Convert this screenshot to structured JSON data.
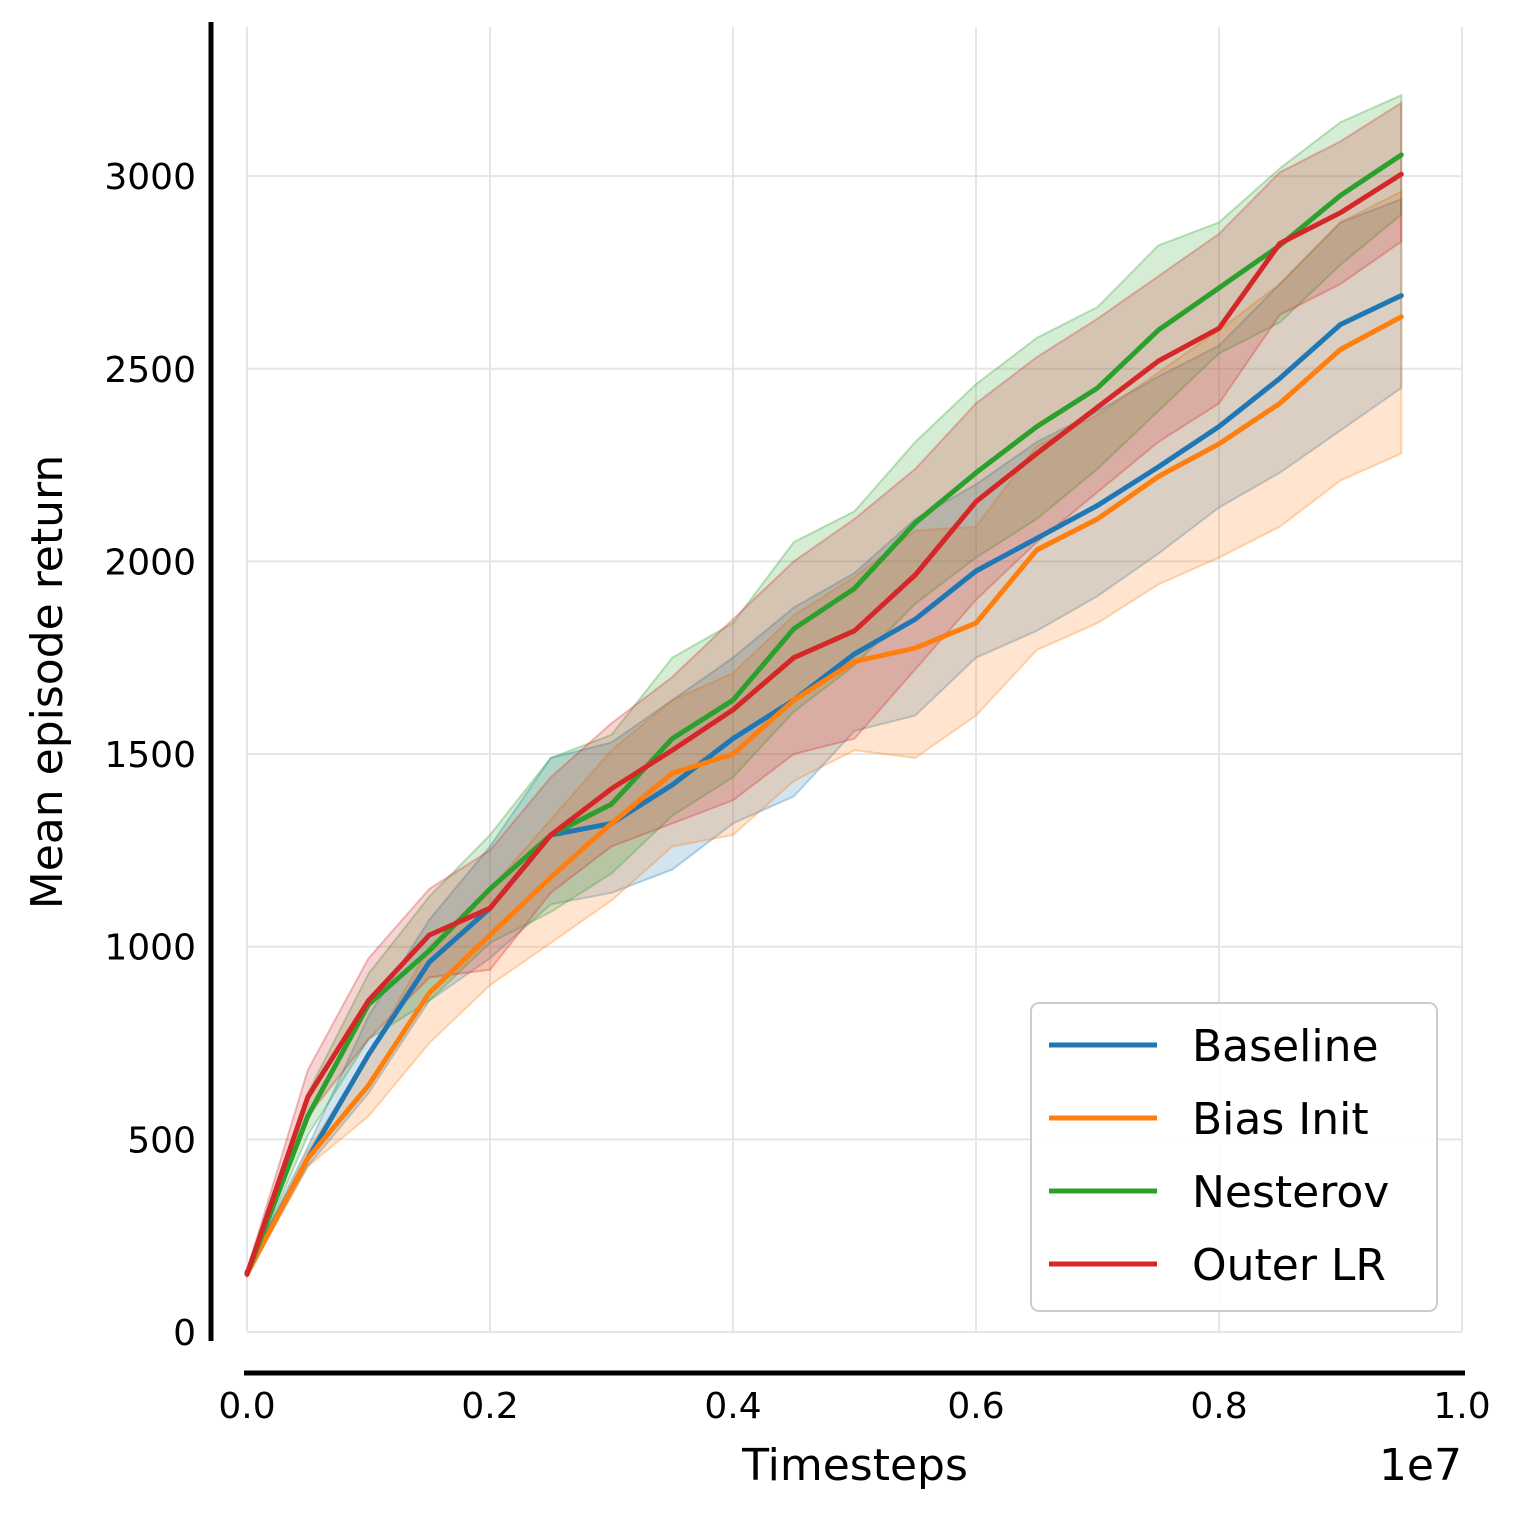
{
  "chart_data": {
    "type": "line",
    "title": "",
    "xlabel": "Timesteps",
    "ylabel": "Mean episode return",
    "x_offset_label": "1e7",
    "xlim": [
      0.0,
      1.0
    ],
    "ylim": [
      0,
      3400
    ],
    "x_ticks": [
      0.0,
      0.2,
      0.4,
      0.6,
      0.8,
      1.0
    ],
    "x_tick_labels": [
      "0.0",
      "0.2",
      "0.4",
      "0.6",
      "0.8",
      "1.0"
    ],
    "y_ticks": [
      0,
      500,
      1000,
      1500,
      2000,
      2500,
      3000
    ],
    "y_tick_labels": [
      "0",
      "500",
      "1000",
      "1500",
      "2000",
      "2500",
      "3000"
    ],
    "grid": true,
    "legend_position": "lower-right",
    "x": [
      0.0,
      0.05,
      0.1,
      0.15,
      0.2,
      0.25,
      0.3,
      0.35,
      0.4,
      0.45,
      0.5,
      0.55,
      0.6,
      0.65,
      0.7,
      0.75,
      0.8,
      0.85,
      0.9,
      0.95
    ],
    "series": [
      {
        "name": "Baseline",
        "color": "#1f77b4",
        "values": [
          155,
          450,
          720,
          960,
          1100,
          1290,
          1320,
          1420,
          1540,
          1640,
          1760,
          1850,
          1975,
          2060,
          2145,
          2245,
          2350,
          2475,
          2615,
          2690
        ],
        "lower": [
          150,
          430,
          620,
          860,
          970,
          1110,
          1140,
          1200,
          1320,
          1390,
          1560,
          1600,
          1750,
          1820,
          1910,
          2020,
          2140,
          2230,
          2340,
          2450
        ],
        "upper": [
          160,
          480,
          820,
          1070,
          1260,
          1490,
          1530,
          1640,
          1750,
          1880,
          1970,
          2110,
          2200,
          2310,
          2390,
          2480,
          2560,
          2720,
          2880,
          2940
        ]
      },
      {
        "name": "Bias Init",
        "color": "#ff7f0e",
        "values": [
          150,
          450,
          640,
          880,
          1030,
          1180,
          1320,
          1450,
          1500,
          1640,
          1740,
          1775,
          1840,
          2030,
          2110,
          2220,
          2305,
          2410,
          2550,
          2635
        ],
        "lower": [
          145,
          430,
          560,
          750,
          900,
          1010,
          1120,
          1260,
          1290,
          1430,
          1510,
          1490,
          1600,
          1770,
          1840,
          1940,
          2010,
          2090,
          2210,
          2280
        ],
        "upper": [
          155,
          470,
          720,
          1000,
          1150,
          1330,
          1510,
          1640,
          1710,
          1860,
          1960,
          2080,
          2090,
          2300,
          2380,
          2490,
          2600,
          2720,
          2880,
          2960
        ]
      },
      {
        "name": "Nesterov",
        "color": "#2ca02c",
        "values": [
          150,
          560,
          850,
          990,
          1150,
          1290,
          1370,
          1540,
          1640,
          1825,
          1930,
          2100,
          2230,
          2350,
          2450,
          2600,
          2710,
          2820,
          2950,
          3055
        ],
        "lower": [
          145,
          510,
          760,
          860,
          1010,
          1090,
          1190,
          1340,
          1440,
          1610,
          1730,
          1890,
          2010,
          2110,
          2240,
          2390,
          2540,
          2620,
          2770,
          2900
        ],
        "upper": [
          160,
          620,
          930,
          1130,
          1290,
          1490,
          1550,
          1750,
          1840,
          2050,
          2130,
          2310,
          2460,
          2580,
          2660,
          2820,
          2880,
          3020,
          3140,
          3210
        ]
      },
      {
        "name": "Outer LR",
        "color": "#d62728",
        "values": [
          150,
          610,
          860,
          1030,
          1100,
          1290,
          1410,
          1510,
          1615,
          1750,
          1820,
          1965,
          2155,
          2280,
          2400,
          2520,
          2605,
          2825,
          2905,
          3005
        ],
        "lower": [
          145,
          560,
          760,
          920,
          940,
          1140,
          1260,
          1320,
          1380,
          1500,
          1540,
          1720,
          1900,
          2050,
          2180,
          2310,
          2410,
          2640,
          2720,
          2830
        ],
        "upper": [
          160,
          680,
          970,
          1150,
          1250,
          1440,
          1580,
          1700,
          1850,
          2000,
          2110,
          2240,
          2410,
          2530,
          2630,
          2740,
          2850,
          3010,
          3090,
          3190
        ]
      }
    ]
  }
}
